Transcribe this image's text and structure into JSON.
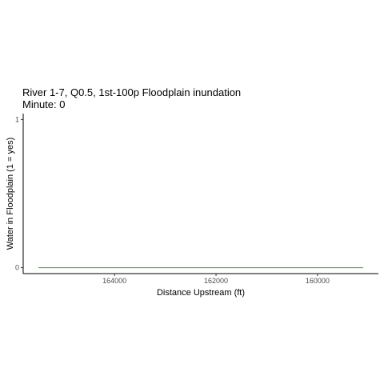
{
  "chart_data": {
    "type": "line",
    "title": "River 1-7, Q0.5, 1st-100p Floodplain inundation",
    "subtitle": "Minute: 0",
    "xlabel": "Distance Upstream (ft)",
    "ylabel": "Water in Floodplain (1 = yes)",
    "x_reversed": true,
    "xlim": [
      165800,
      158800
    ],
    "ylim": [
      -0.04,
      1.04
    ],
    "x_ticks": [
      164000,
      162000,
      160000
    ],
    "x_tick_labels": [
      "164000",
      "162000",
      "160000"
    ],
    "y_ticks": [
      0,
      1
    ],
    "y_tick_labels": [
      "0",
      "1"
    ],
    "grid": false,
    "series": [
      {
        "color": "#00cc00",
        "x": [
          165500,
          159100
        ],
        "y": [
          0,
          0
        ]
      }
    ]
  }
}
